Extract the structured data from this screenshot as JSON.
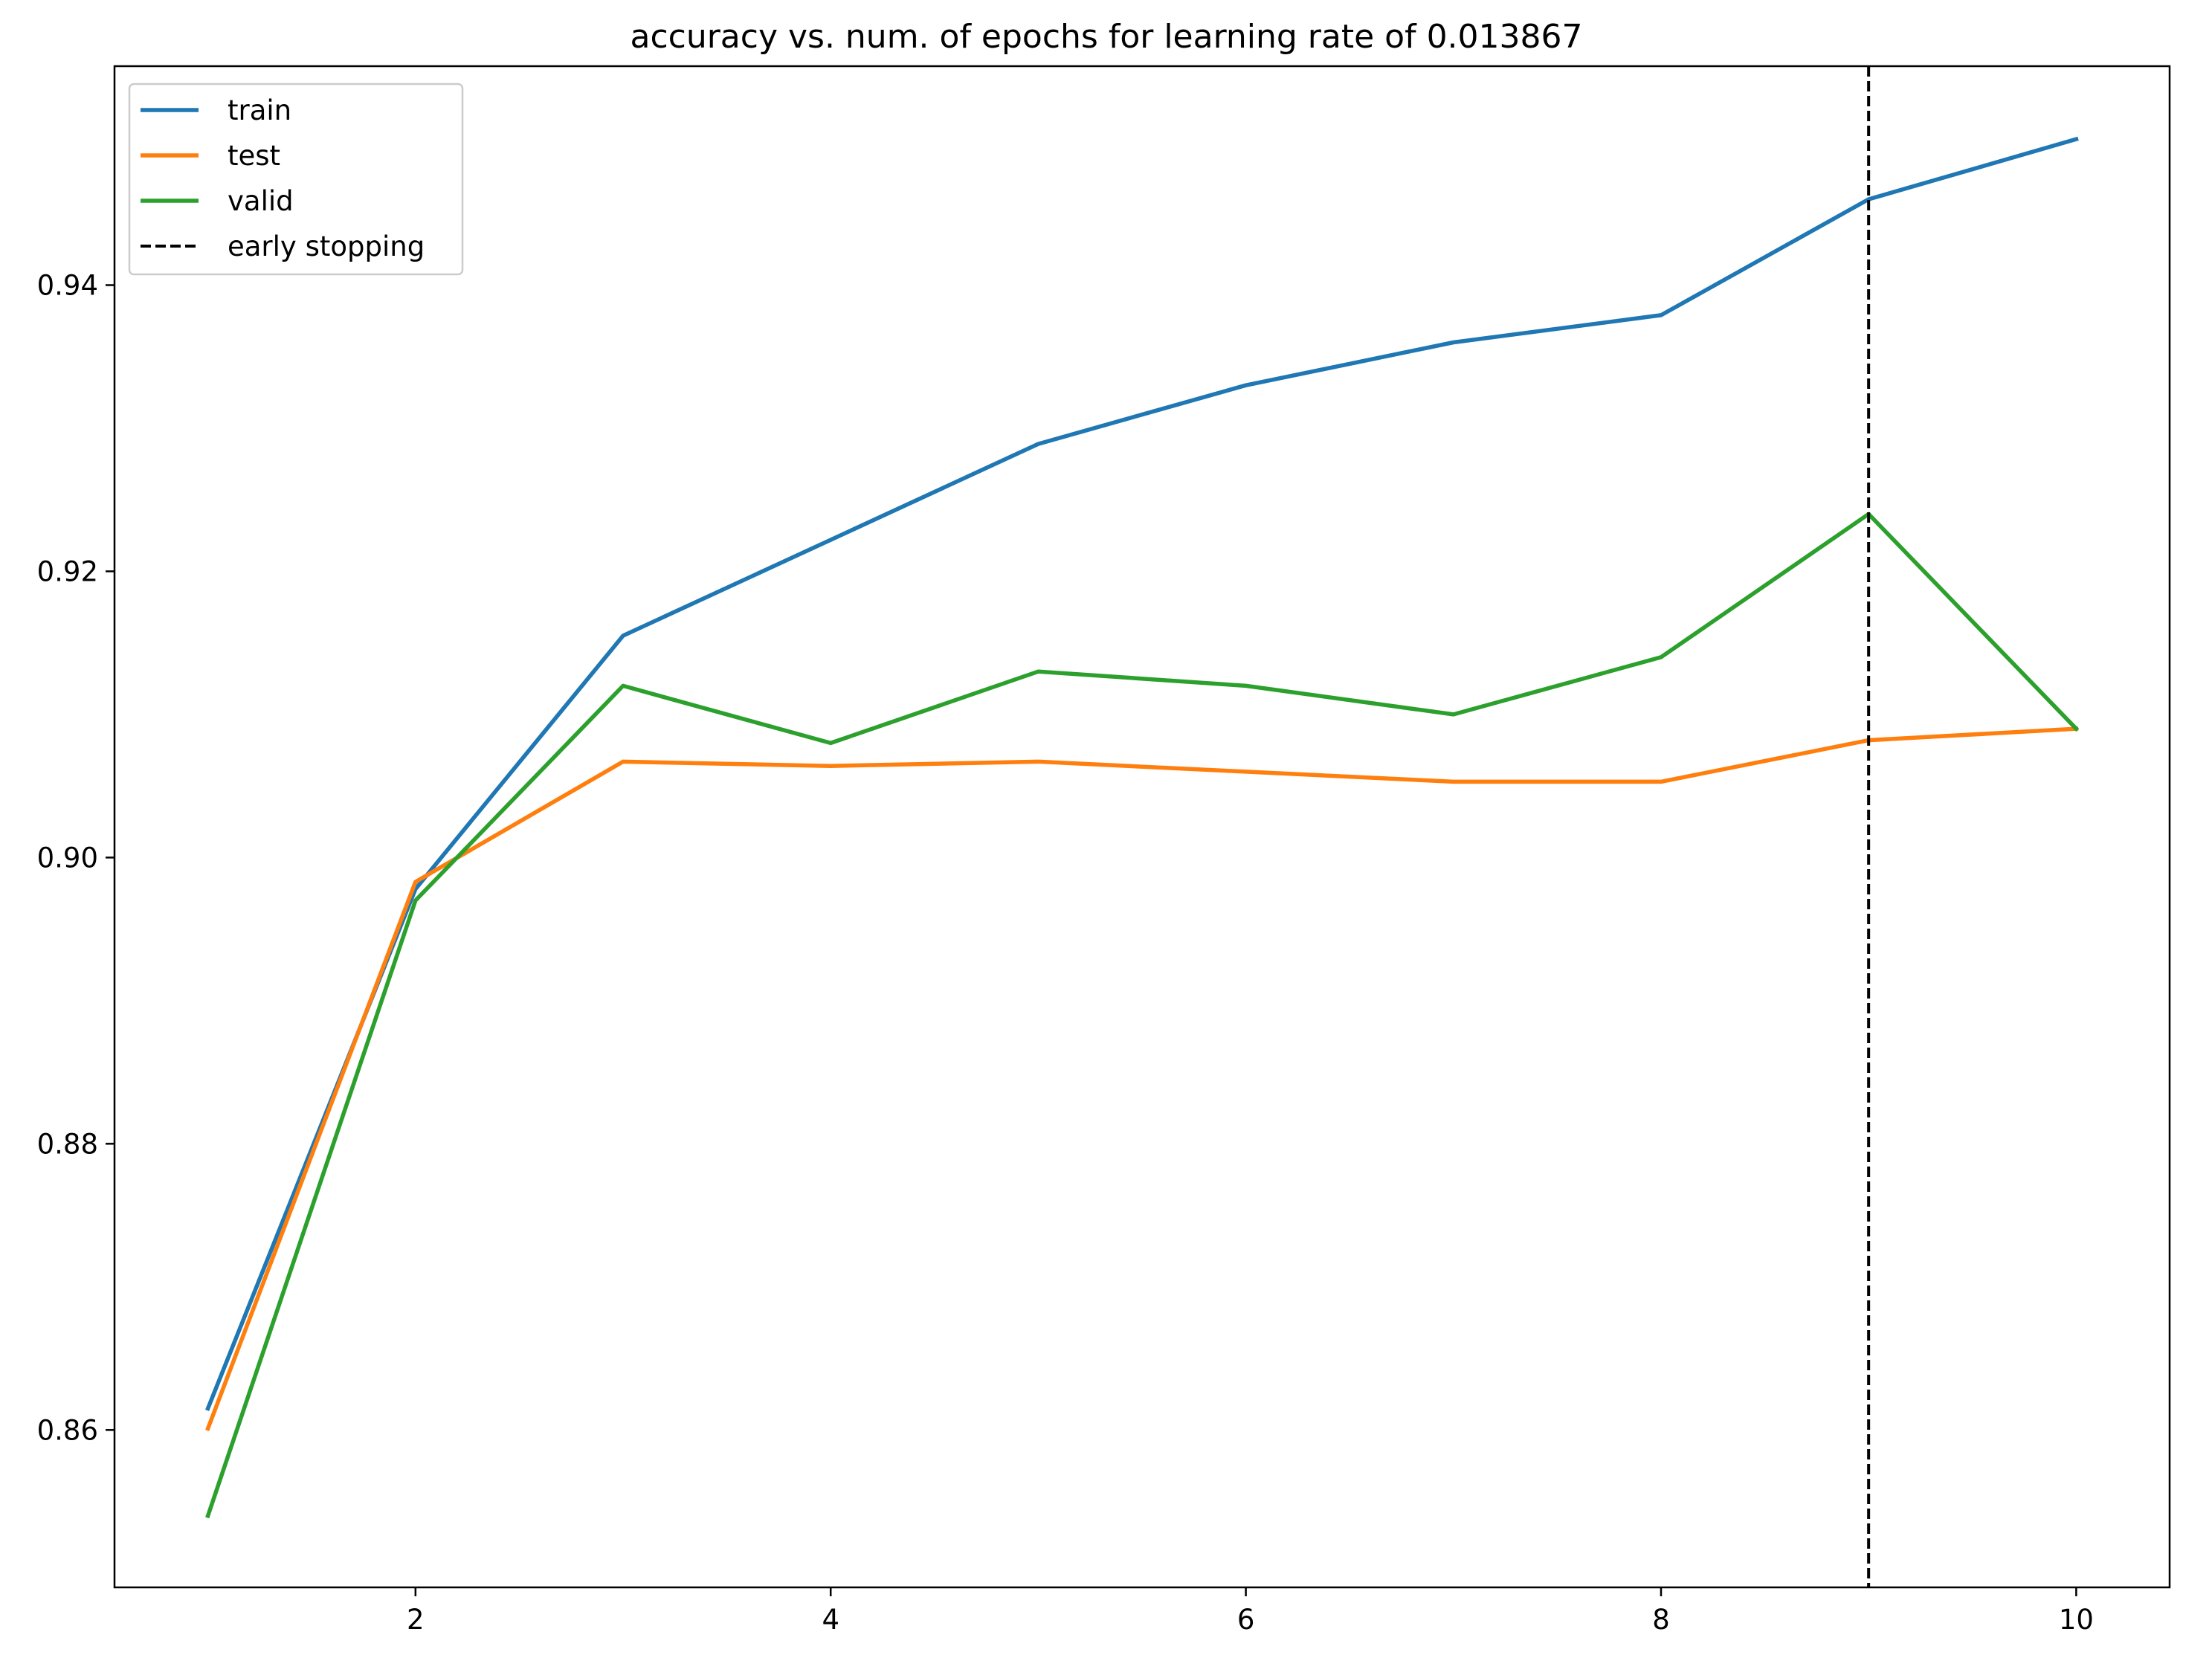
{
  "chart_data": {
    "type": "line",
    "title": "accuracy vs. num. of epochs for learning rate of 0.013867",
    "xlabel": "",
    "ylabel": "",
    "x": [
      1,
      2,
      3,
      4,
      5,
      6,
      7,
      8,
      9,
      10
    ],
    "xlim": [
      0.55,
      10.45
    ],
    "ylim": [
      0.849,
      0.9553
    ],
    "xticks": [
      2,
      4,
      6,
      8,
      10
    ],
    "xtick_labels": [
      "2",
      "4",
      "6",
      "8",
      "10"
    ],
    "yticks": [
      0.86,
      0.88,
      0.9,
      0.92,
      0.94
    ],
    "ytick_labels": [
      "0.86",
      "0.88",
      "0.90",
      "0.92",
      "0.94"
    ],
    "grid": false,
    "legend_position": "top-left",
    "series": [
      {
        "name": "train",
        "color": "#1f77b4",
        "style": "solid",
        "values": [
          0.8615,
          0.8978,
          0.9155,
          0.9222,
          0.9289,
          0.933,
          0.936,
          0.9379,
          0.946,
          0.9502
        ]
      },
      {
        "name": "test",
        "color": "#ff7f0e",
        "style": "solid",
        "values": [
          0.8601,
          0.8983,
          0.9067,
          0.9064,
          0.9067,
          0.906,
          0.9053,
          0.9053,
          0.9082,
          0.909
        ]
      },
      {
        "name": "valid",
        "color": "#2ca02c",
        "style": "solid",
        "values": [
          0.854,
          0.897,
          0.912,
          0.908,
          0.913,
          0.912,
          0.91,
          0.914,
          0.924,
          0.909
        ]
      }
    ],
    "vertical_lines": [
      {
        "name": "early stopping",
        "x": 9,
        "color": "#000000",
        "style": "dashed"
      }
    ]
  }
}
